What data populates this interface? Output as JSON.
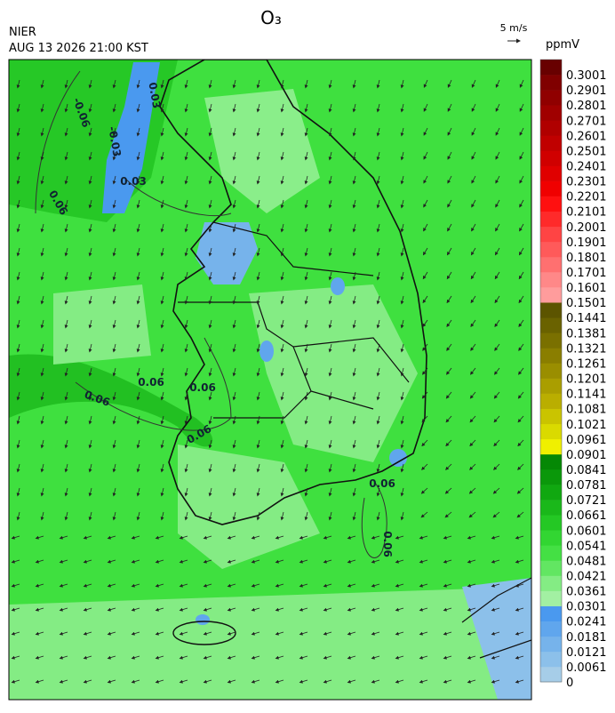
{
  "header": {
    "title": "O₃",
    "agency": "NIER",
    "datetime": "AUG 13 2026 21:00 KST",
    "wind_scale": "5 m/s",
    "unit": "ppmV"
  },
  "legend": {
    "labels": [
      "0",
      "0.0061",
      "0.0121",
      "0.0181",
      "0.0241",
      "0.0301",
      "0.0361",
      "0.0421",
      "0.0481",
      "0.0541",
      "0.0601",
      "0.0661",
      "0.0721",
      "0.0781",
      "0.0841",
      "0.0901",
      "0.0961",
      "0.1021",
      "0.1081",
      "0.1141",
      "0.1201",
      "0.1261",
      "0.1321",
      "0.1381",
      "0.1441",
      "0.1501",
      "0.1601",
      "0.1701",
      "0.1801",
      "0.1901",
      "0.2001",
      "0.2101",
      "0.2201",
      "0.2301",
      "0.2401",
      "0.2501",
      "0.2601",
      "0.2701",
      "0.2801",
      "0.2901",
      "0.3001"
    ],
    "colors": [
      "#a6cde8",
      "#8cc0ea",
      "#76b3eb",
      "#60a6ed",
      "#4a99ef",
      "#a2f0a2",
      "#84ec84",
      "#62e662",
      "#44e044",
      "#32d632",
      "#24c824",
      "#1ab81a",
      "#10a810",
      "#0a980a",
      "#058805",
      "#f0f000",
      "#dada00",
      "#cac400",
      "#baae00",
      "#aa9e00",
      "#9a8e00",
      "#8a7e00",
      "#7a7000",
      "#6a6200",
      "#5c5400",
      "#ff9c9c",
      "#ff8888",
      "#ff7070",
      "#ff5a5a",
      "#ff4444",
      "#ff2a2a",
      "#ff1010",
      "#f00000",
      "#e00000",
      "#d00000",
      "#c00000",
      "#b00000",
      "#a00000",
      "#900000",
      "#800000",
      "#680000"
    ]
  },
  "map": {
    "contour_labels": [
      "-0.06",
      "0.03",
      "-0.03",
      "0.03",
      "0.06",
      "0.06",
      "0.06",
      "0.06",
      "0.06",
      "0.06",
      "0.06"
    ]
  }
}
